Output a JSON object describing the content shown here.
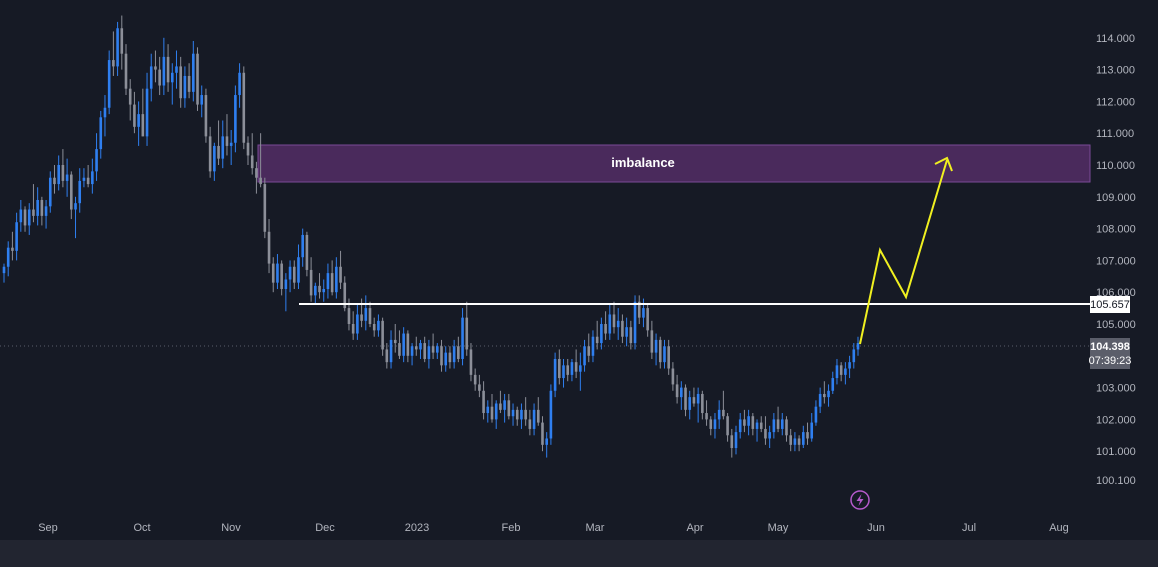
{
  "chart_data": {
    "type": "candlestick",
    "y_axis": {
      "ticks": [
        "114.000",
        "113.000",
        "112.000",
        "111.000",
        "110.000",
        "109.000",
        "108.000",
        "107.000",
        "106.000",
        "105.000",
        "103.000",
        "102.000",
        "101.000",
        "100.100"
      ],
      "range": [
        99.7,
        114.8
      ]
    },
    "x_axis": {
      "ticks": [
        "Sep",
        "Oct",
        "Nov",
        "Dec",
        "2023",
        "Feb",
        "Mar",
        "Apr",
        "May",
        "Jun",
        "Jul",
        "Aug"
      ]
    },
    "colors": {
      "up": "#2f7ff0",
      "down": "#8c8f99",
      "background": "#161a25"
    },
    "candles": [
      [
        106.6,
        106.9,
        106.3,
        106.8
      ],
      [
        106.8,
        107.6,
        106.5,
        107.4
      ],
      [
        107.4,
        107.9,
        107.0,
        107.3
      ],
      [
        107.3,
        108.5,
        107.0,
        108.2
      ],
      [
        108.2,
        108.9,
        107.9,
        108.6
      ],
      [
        108.6,
        108.7,
        107.9,
        108.1
      ],
      [
        108.1,
        108.8,
        107.8,
        108.6
      ],
      [
        108.6,
        109.4,
        108.2,
        108.4
      ],
      [
        108.4,
        109.3,
        108.1,
        108.9
      ],
      [
        108.9,
        109.0,
        108.1,
        108.4
      ],
      [
        108.4,
        108.9,
        108.0,
        108.7
      ],
      [
        108.7,
        109.8,
        108.5,
        109.6
      ],
      [
        109.6,
        110.0,
        109.1,
        109.4
      ],
      [
        109.4,
        110.3,
        109.2,
        110.0
      ],
      [
        110.0,
        110.5,
        109.3,
        109.5
      ],
      [
        109.5,
        110.2,
        109.0,
        109.7
      ],
      [
        109.7,
        109.8,
        108.3,
        108.6
      ],
      [
        108.6,
        109.0,
        107.7,
        108.8
      ],
      [
        108.8,
        109.9,
        108.5,
        109.5
      ],
      [
        109.5,
        109.9,
        109.3,
        109.6
      ],
      [
        109.6,
        110.0,
        109.3,
        109.4
      ],
      [
        109.4,
        110.2,
        109.1,
        109.8
      ],
      [
        109.8,
        111.0,
        109.5,
        110.5
      ],
      [
        110.5,
        111.7,
        110.2,
        111.5
      ],
      [
        111.5,
        112.2,
        110.9,
        111.8
      ],
      [
        111.8,
        113.6,
        111.6,
        113.3
      ],
      [
        113.3,
        114.2,
        112.8,
        113.1
      ],
      [
        113.1,
        114.5,
        112.8,
        114.3
      ],
      [
        114.3,
        114.7,
        113.0,
        113.5
      ],
      [
        113.5,
        113.8,
        112.2,
        112.4
      ],
      [
        112.4,
        112.7,
        111.4,
        111.9
      ],
      [
        111.9,
        112.3,
        111.0,
        111.2
      ],
      [
        111.2,
        112.0,
        110.6,
        111.6
      ],
      [
        111.6,
        112.4,
        110.9,
        110.9
      ],
      [
        110.9,
        112.9,
        110.6,
        112.4
      ],
      [
        112.4,
        113.5,
        112.0,
        113.1
      ],
      [
        113.1,
        113.6,
        112.6,
        113.0
      ],
      [
        113.0,
        113.4,
        112.2,
        112.5
      ],
      [
        112.5,
        114.0,
        112.2,
        113.4
      ],
      [
        113.4,
        113.8,
        112.3,
        112.6
      ],
      [
        112.6,
        113.2,
        111.9,
        112.9
      ],
      [
        112.9,
        113.6,
        112.4,
        113.1
      ],
      [
        113.1,
        113.4,
        111.8,
        112.1
      ],
      [
        112.1,
        113.1,
        111.8,
        112.8
      ],
      [
        112.8,
        113.2,
        112.1,
        112.3
      ],
      [
        112.3,
        113.9,
        112.0,
        113.5
      ],
      [
        113.5,
        113.7,
        111.7,
        111.9
      ],
      [
        111.9,
        112.5,
        111.5,
        112.2
      ],
      [
        112.2,
        112.4,
        110.7,
        110.9
      ],
      [
        110.9,
        111.2,
        109.6,
        109.8
      ],
      [
        109.8,
        110.7,
        109.5,
        110.6
      ],
      [
        110.6,
        111.4,
        110.0,
        110.2
      ],
      [
        110.2,
        111.4,
        109.9,
        110.9
      ],
      [
        110.9,
        111.6,
        110.3,
        110.6
      ],
      [
        110.6,
        111.1,
        110.0,
        110.7
      ],
      [
        110.7,
        112.5,
        110.4,
        112.2
      ],
      [
        112.2,
        113.2,
        111.8,
        112.9
      ],
      [
        112.9,
        113.1,
        110.5,
        110.7
      ],
      [
        110.7,
        110.9,
        110.0,
        110.3
      ],
      [
        110.3,
        111.0,
        109.7,
        109.9
      ],
      [
        109.9,
        110.1,
        109.1,
        109.6
      ],
      [
        109.6,
        111.0,
        109.3,
        109.4
      ],
      [
        109.4,
        109.6,
        107.7,
        107.9
      ],
      [
        107.9,
        108.3,
        106.6,
        106.9
      ],
      [
        106.9,
        107.1,
        106.0,
        106.3
      ],
      [
        106.3,
        107.2,
        106.1,
        106.9
      ],
      [
        106.9,
        107.0,
        105.9,
        106.1
      ],
      [
        106.1,
        106.6,
        105.4,
        106.4
      ],
      [
        106.4,
        107.0,
        106.0,
        106.8
      ],
      [
        106.8,
        107.0,
        106.1,
        106.3
      ],
      [
        106.3,
        107.5,
        106.1,
        107.1
      ],
      [
        107.1,
        108.0,
        106.8,
        107.8
      ],
      [
        107.8,
        107.9,
        106.5,
        106.7
      ],
      [
        106.7,
        107.1,
        105.7,
        105.9
      ],
      [
        105.9,
        106.3,
        105.6,
        106.2
      ],
      [
        106.2,
        106.6,
        105.8,
        106.0
      ],
      [
        106.0,
        106.4,
        105.7,
        106.1
      ],
      [
        106.1,
        106.9,
        105.8,
        106.6
      ],
      [
        106.6,
        107.0,
        105.9,
        106.0
      ],
      [
        106.0,
        107.1,
        105.8,
        106.8
      ],
      [
        106.8,
        107.3,
        106.1,
        106.3
      ],
      [
        106.3,
        106.5,
        105.4,
        105.5
      ],
      [
        105.5,
        105.8,
        104.8,
        105.0
      ],
      [
        105.0,
        105.4,
        104.5,
        104.7
      ],
      [
        104.7,
        105.6,
        104.5,
        105.3
      ],
      [
        105.3,
        105.8,
        104.9,
        105.1
      ],
      [
        105.1,
        105.9,
        104.8,
        105.5
      ],
      [
        105.5,
        105.7,
        104.9,
        105.0
      ],
      [
        105.0,
        105.2,
        104.6,
        104.8
      ],
      [
        104.8,
        105.3,
        104.6,
        105.1
      ],
      [
        105.1,
        105.2,
        104.0,
        104.2
      ],
      [
        104.2,
        104.4,
        103.6,
        103.8
      ],
      [
        103.8,
        104.8,
        103.6,
        104.5
      ],
      [
        104.5,
        105.0,
        104.1,
        104.4
      ],
      [
        104.4,
        104.8,
        103.9,
        104.0
      ],
      [
        104.0,
        104.9,
        103.8,
        104.7
      ],
      [
        104.7,
        104.8,
        103.8,
        104.0
      ],
      [
        104.0,
        104.4,
        103.7,
        104.3
      ],
      [
        104.3,
        104.6,
        104.0,
        104.2
      ],
      [
        104.2,
        104.5,
        103.9,
        104.4
      ],
      [
        104.4,
        104.6,
        103.8,
        103.9
      ],
      [
        103.9,
        104.5,
        103.6,
        104.3
      ],
      [
        104.3,
        104.7,
        103.9,
        104.1
      ],
      [
        104.1,
        104.4,
        103.9,
        104.3
      ],
      [
        104.3,
        104.5,
        103.5,
        103.7
      ],
      [
        103.7,
        104.3,
        103.5,
        104.1
      ],
      [
        104.1,
        104.3,
        103.6,
        103.8
      ],
      [
        103.8,
        104.5,
        103.6,
        104.3
      ],
      [
        104.3,
        104.6,
        103.8,
        103.9
      ],
      [
        103.9,
        105.5,
        103.7,
        105.2
      ],
      [
        105.2,
        105.7,
        104.0,
        104.2
      ],
      [
        104.2,
        104.4,
        103.2,
        103.4
      ],
      [
        103.4,
        103.6,
        102.9,
        103.1
      ],
      [
        103.1,
        103.4,
        102.7,
        102.9
      ],
      [
        102.9,
        103.2,
        102.0,
        102.2
      ],
      [
        102.2,
        102.6,
        101.9,
        102.4
      ],
      [
        102.4,
        102.8,
        101.9,
        102.0
      ],
      [
        102.0,
        102.6,
        101.7,
        102.5
      ],
      [
        102.5,
        102.9,
        102.2,
        102.3
      ],
      [
        102.3,
        102.8,
        101.9,
        102.6
      ],
      [
        102.6,
        102.8,
        102.0,
        102.1
      ],
      [
        102.1,
        102.5,
        101.8,
        102.3
      ],
      [
        102.3,
        102.4,
        101.8,
        102.0
      ],
      [
        102.0,
        102.5,
        101.7,
        102.3
      ],
      [
        102.3,
        102.7,
        101.8,
        102.0
      ],
      [
        102.0,
        102.3,
        101.5,
        101.7
      ],
      [
        101.7,
        102.5,
        101.5,
        102.3
      ],
      [
        102.3,
        102.7,
        101.8,
        101.9
      ],
      [
        101.9,
        102.1,
        101.0,
        101.2
      ],
      [
        101.2,
        101.6,
        100.8,
        101.4
      ],
      [
        101.4,
        103.1,
        101.2,
        102.9
      ],
      [
        102.9,
        104.1,
        102.7,
        103.9
      ],
      [
        103.9,
        104.2,
        103.1,
        103.3
      ],
      [
        103.3,
        103.9,
        103.0,
        103.7
      ],
      [
        103.7,
        103.9,
        103.2,
        103.4
      ],
      [
        103.4,
        103.9,
        103.2,
        103.8
      ],
      [
        103.8,
        104.2,
        103.3,
        103.5
      ],
      [
        103.5,
        104.1,
        102.9,
        103.7
      ],
      [
        103.7,
        104.5,
        103.5,
        104.3
      ],
      [
        104.3,
        104.7,
        103.8,
        104.0
      ],
      [
        104.0,
        104.8,
        103.8,
        104.6
      ],
      [
        104.6,
        105.1,
        104.2,
        104.4
      ],
      [
        104.4,
        105.2,
        104.2,
        105.0
      ],
      [
        105.0,
        105.4,
        104.5,
        104.7
      ],
      [
        104.7,
        105.6,
        104.5,
        105.3
      ],
      [
        105.3,
        105.7,
        104.7,
        104.9
      ],
      [
        104.9,
        105.5,
        104.5,
        105.1
      ],
      [
        105.1,
        105.3,
        104.4,
        104.6
      ],
      [
        104.6,
        105.2,
        104.3,
        104.9
      ],
      [
        104.9,
        105.1,
        104.2,
        104.4
      ],
      [
        104.4,
        105.9,
        104.2,
        105.7
      ],
      [
        105.7,
        105.9,
        105.0,
        105.2
      ],
      [
        105.2,
        105.8,
        104.9,
        105.5
      ],
      [
        105.5,
        105.6,
        104.6,
        104.8
      ],
      [
        104.8,
        105.1,
        103.9,
        104.1
      ],
      [
        104.1,
        104.7,
        103.7,
        104.5
      ],
      [
        104.5,
        104.6,
        103.6,
        103.8
      ],
      [
        103.8,
        104.5,
        103.6,
        104.3
      ],
      [
        104.3,
        104.5,
        103.4,
        103.6
      ],
      [
        103.6,
        103.8,
        102.9,
        103.1
      ],
      [
        103.1,
        103.4,
        102.5,
        102.7
      ],
      [
        102.7,
        103.2,
        102.3,
        103.0
      ],
      [
        103.0,
        103.1,
        102.1,
        102.3
      ],
      [
        102.3,
        102.9,
        102.0,
        102.7
      ],
      [
        102.7,
        103.0,
        102.4,
        102.5
      ],
      [
        102.5,
        103.0,
        101.9,
        102.8
      ],
      [
        102.8,
        102.9,
        102.0,
        102.2
      ],
      [
        102.2,
        102.6,
        101.8,
        102.0
      ],
      [
        102.0,
        102.1,
        101.5,
        101.7
      ],
      [
        101.7,
        102.2,
        101.4,
        102.0
      ],
      [
        102.0,
        102.6,
        101.7,
        102.3
      ],
      [
        102.3,
        102.9,
        102.0,
        102.1
      ],
      [
        102.1,
        102.2,
        101.3,
        101.5
      ],
      [
        101.5,
        101.7,
        100.8,
        101.1
      ],
      [
        101.1,
        101.8,
        100.9,
        101.6
      ],
      [
        101.6,
        102.2,
        101.4,
        102.0
      ],
      [
        102.0,
        102.3,
        101.6,
        101.8
      ],
      [
        101.8,
        102.3,
        101.5,
        102.1
      ],
      [
        102.1,
        102.2,
        101.5,
        101.7
      ],
      [
        101.7,
        102.0,
        101.3,
        101.9
      ],
      [
        101.9,
        102.1,
        101.6,
        101.7
      ],
      [
        101.7,
        102.1,
        101.2,
        101.4
      ],
      [
        101.4,
        101.8,
        101.1,
        101.6
      ],
      [
        101.6,
        102.2,
        101.4,
        102.0
      ],
      [
        102.0,
        102.4,
        101.6,
        101.7
      ],
      [
        101.7,
        102.2,
        101.5,
        102.0
      ],
      [
        102.0,
        102.1,
        101.3,
        101.5
      ],
      [
        101.5,
        101.7,
        101.0,
        101.2
      ],
      [
        101.2,
        101.6,
        101.0,
        101.4
      ],
      [
        101.4,
        101.5,
        101.0,
        101.2
      ],
      [
        101.2,
        101.8,
        101.1,
        101.6
      ],
      [
        101.6,
        101.9,
        101.2,
        101.4
      ],
      [
        101.4,
        102.2,
        101.3,
        101.9
      ],
      [
        101.9,
        102.6,
        101.8,
        102.4
      ],
      [
        102.4,
        103.0,
        102.2,
        102.8
      ],
      [
        102.8,
        103.2,
        102.5,
        102.7
      ],
      [
        102.7,
        103.1,
        102.4,
        102.9
      ],
      [
        102.9,
        103.5,
        102.8,
        103.3
      ],
      [
        103.3,
        103.9,
        103.1,
        103.7
      ],
      [
        103.7,
        103.8,
        103.2,
        103.4
      ],
      [
        103.4,
        103.8,
        103.1,
        103.6
      ],
      [
        103.6,
        104.0,
        103.3,
        103.8
      ],
      [
        103.8,
        104.4,
        103.6,
        104.2
      ],
      [
        104.2,
        104.6,
        104.0,
        104.4
      ]
    ]
  },
  "annotations": {
    "zone_label": "imbalance",
    "level_price": "105.657",
    "current_price": "104.398",
    "countdown": "07:39:23"
  },
  "icons": {
    "bolt": "lightning-bolt-icon"
  }
}
